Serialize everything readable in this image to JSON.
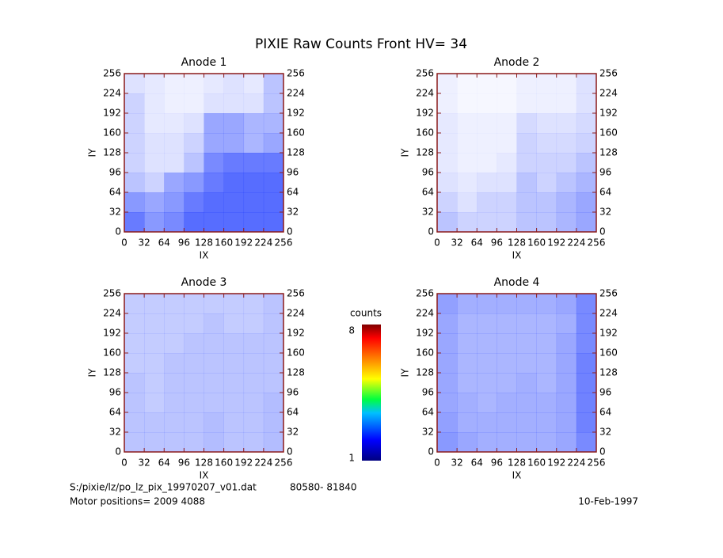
{
  "title": "PIXIE Raw Counts Front HV= 34",
  "chart_data": [
    {
      "type": "heatmap",
      "title": "Anode 1",
      "xlabel": "IX",
      "ylabel": "IY",
      "color": "#1f3cff",
      "xlim": [
        0,
        256
      ],
      "ylim": [
        0,
        256
      ],
      "xticks": [
        0,
        32,
        64,
        96,
        128,
        160,
        192,
        224,
        256
      ],
      "yticks": [
        0,
        32,
        64,
        96,
        128,
        160,
        192,
        224,
        256
      ],
      "z": [
        [
          0.9,
          0.7,
          0.8,
          1,
          1,
          1,
          1,
          1
        ],
        [
          0.7,
          0.6,
          0.7,
          0.9,
          1,
          1,
          1,
          1
        ],
        [
          0.4,
          0.3,
          0.6,
          0.7,
          0.9,
          1,
          1,
          1
        ],
        [
          0.3,
          0.2,
          0.2,
          0.4,
          0.8,
          0.9,
          0.9,
          0.9
        ],
        [
          0.3,
          0.2,
          0.2,
          0.3,
          0.6,
          0.6,
          0.5,
          0.6
        ],
        [
          0.3,
          0.15,
          0.15,
          0.2,
          0.6,
          0.6,
          0.5,
          0.5
        ],
        [
          0.3,
          0.15,
          0.1,
          0.1,
          0.2,
          0.2,
          0.2,
          0.4
        ],
        [
          0.2,
          0.15,
          0.1,
          0.1,
          0.15,
          0.2,
          0.15,
          0.4
        ]
      ]
    },
    {
      "type": "heatmap",
      "title": "Anode 2",
      "xlabel": "IX",
      "ylabel": "IY",
      "color": "#1f3cff",
      "xlim": [
        0,
        256
      ],
      "ylim": [
        0,
        256
      ],
      "xticks": [
        0,
        32,
        64,
        96,
        128,
        160,
        192,
        224,
        256
      ],
      "yticks": [
        0,
        32,
        64,
        96,
        128,
        160,
        192,
        224,
        256
      ],
      "z": [
        [
          0.4,
          0.3,
          0.3,
          0.3,
          0.4,
          0.4,
          0.5,
          0.6
        ],
        [
          0.3,
          0.2,
          0.3,
          0.3,
          0.4,
          0.4,
          0.5,
          0.6
        ],
        [
          0.2,
          0.15,
          0.2,
          0.2,
          0.4,
          0.3,
          0.4,
          0.5
        ],
        [
          0.15,
          0.1,
          0.1,
          0.15,
          0.3,
          0.3,
          0.3,
          0.4
        ],
        [
          0.15,
          0.1,
          0.1,
          0.1,
          0.3,
          0.25,
          0.25,
          0.3
        ],
        [
          0.15,
          0.1,
          0.1,
          0.1,
          0.25,
          0.2,
          0.2,
          0.25
        ],
        [
          0.1,
          0.05,
          0.05,
          0.05,
          0.1,
          0.1,
          0.1,
          0.2
        ],
        [
          0.1,
          0.05,
          0.05,
          0.05,
          0.1,
          0.1,
          0.1,
          0.2
        ]
      ]
    },
    {
      "type": "heatmap",
      "title": "Anode 3",
      "xlabel": "IX",
      "ylabel": "IY",
      "color": "#1f3cff",
      "xlim": [
        0,
        256
      ],
      "ylim": [
        0,
        256
      ],
      "xticks": [
        0,
        32,
        64,
        96,
        128,
        160,
        192,
        224,
        256
      ],
      "yticks": [
        0,
        32,
        64,
        96,
        128,
        160,
        192,
        224,
        256
      ],
      "z": [
        [
          0.4,
          0.4,
          0.4,
          0.4,
          0.45,
          0.4,
          0.4,
          0.45
        ],
        [
          0.4,
          0.4,
          0.4,
          0.4,
          0.45,
          0.4,
          0.4,
          0.45
        ],
        [
          0.4,
          0.35,
          0.4,
          0.4,
          0.4,
          0.4,
          0.4,
          0.45
        ],
        [
          0.4,
          0.35,
          0.4,
          0.4,
          0.4,
          0.4,
          0.4,
          0.4
        ],
        [
          0.35,
          0.35,
          0.4,
          0.4,
          0.4,
          0.4,
          0.4,
          0.4
        ],
        [
          0.35,
          0.35,
          0.35,
          0.4,
          0.4,
          0.4,
          0.4,
          0.4
        ],
        [
          0.35,
          0.35,
          0.35,
          0.35,
          0.4,
          0.35,
          0.35,
          0.4
        ],
        [
          0.35,
          0.35,
          0.35,
          0.35,
          0.35,
          0.35,
          0.35,
          0.4
        ]
      ]
    },
    {
      "type": "heatmap",
      "title": "Anode 4",
      "xlabel": "IX",
      "ylabel": "IY",
      "color": "#1f3cff",
      "xlim": [
        0,
        256
      ],
      "ylim": [
        0,
        256
      ],
      "xticks": [
        0,
        32,
        64,
        96,
        128,
        160,
        192,
        224,
        256
      ],
      "yticks": [
        0,
        32,
        64,
        96,
        128,
        160,
        192,
        224,
        256
      ],
      "z": [
        [
          0.7,
          0.6,
          0.55,
          0.55,
          0.55,
          0.55,
          0.6,
          0.8
        ],
        [
          0.65,
          0.55,
          0.55,
          0.55,
          0.55,
          0.55,
          0.6,
          0.85
        ],
        [
          0.6,
          0.55,
          0.5,
          0.55,
          0.55,
          0.55,
          0.6,
          0.85
        ],
        [
          0.6,
          0.5,
          0.5,
          0.5,
          0.55,
          0.5,
          0.6,
          0.85
        ],
        [
          0.6,
          0.5,
          0.5,
          0.5,
          0.5,
          0.5,
          0.6,
          0.85
        ],
        [
          0.6,
          0.5,
          0.5,
          0.5,
          0.5,
          0.5,
          0.6,
          0.8
        ],
        [
          0.6,
          0.5,
          0.5,
          0.5,
          0.5,
          0.5,
          0.55,
          0.8
        ],
        [
          0.65,
          0.55,
          0.55,
          0.55,
          0.55,
          0.55,
          0.6,
          0.8
        ]
      ]
    }
  ],
  "colorbar": {
    "label": "counts",
    "range": [
      1,
      8
    ]
  },
  "footer": {
    "file": "S:/pixie/lz/po_lz_pix_19970207_v01.dat",
    "counts_range": "80580- 81840",
    "motor": "Motor positions= 2009 4088",
    "date": "10-Feb-1997"
  }
}
